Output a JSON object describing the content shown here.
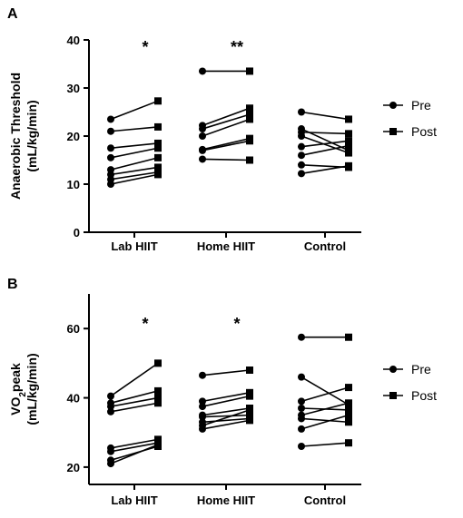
{
  "chart_data": [
    {
      "type": "scatter",
      "panel_label": "A",
      "ylabel_line1": "Anaerobic Threshold",
      "ylabel_line2": "(mL/kg/min)",
      "ylim": [
        0,
        40
      ],
      "yticks": [
        0,
        10,
        20,
        30,
        40
      ],
      "categories": [
        "Lab HIIT",
        "Home HIIT",
        "Control"
      ],
      "significance": [
        "*",
        "**",
        ""
      ],
      "legend": [
        {
          "label": "Pre",
          "marker": "circle"
        },
        {
          "label": "Post",
          "marker": "square"
        }
      ],
      "groups": [
        {
          "name": "Lab HIIT",
          "pairs": [
            [
              23.5,
              27.3
            ],
            [
              21.0,
              21.9
            ],
            [
              17.5,
              18.5
            ],
            [
              15.5,
              17.5
            ],
            [
              13.0,
              15.5
            ],
            [
              12.0,
              13.5
            ],
            [
              11.0,
              12.5
            ],
            [
              10.0,
              12.0
            ]
          ]
        },
        {
          "name": "Home HIIT",
          "pairs": [
            [
              33.5,
              33.5
            ],
            [
              22.2,
              25.8
            ],
            [
              21.5,
              24.5
            ],
            [
              20.0,
              23.5
            ],
            [
              17.2,
              19.5
            ],
            [
              17.0,
              19.0
            ],
            [
              15.2,
              15.0
            ]
          ]
        },
        {
          "name": "Control",
          "pairs": [
            [
              25.0,
              23.5
            ],
            [
              21.5,
              17.0
            ],
            [
              20.8,
              20.5
            ],
            [
              20.0,
              16.5
            ],
            [
              17.8,
              19.0
            ],
            [
              16.0,
              18.0
            ],
            [
              14.0,
              13.5
            ],
            [
              12.2,
              13.8
            ]
          ]
        }
      ]
    },
    {
      "type": "scatter",
      "panel_label": "B",
      "ylabel_line1": "VO",
      "ylabel_sub": "2",
      "ylabel_line1_rest": "peak",
      "ylabel_line2": "(mL/kg/min)",
      "ylim": [
        15,
        70
      ],
      "yticks": [
        20,
        40,
        60
      ],
      "categories": [
        "Lab HIIT",
        "Home HIIT",
        "Control"
      ],
      "significance": [
        "*",
        "*",
        ""
      ],
      "legend": [
        {
          "label": "Pre",
          "marker": "circle"
        },
        {
          "label": "Post",
          "marker": "square"
        }
      ],
      "groups": [
        {
          "name": "Lab HIIT",
          "pairs": [
            [
              40.5,
              50.0
            ],
            [
              38.5,
              42.0
            ],
            [
              37.5,
              40.0
            ],
            [
              36.0,
              38.5
            ],
            [
              25.5,
              28.0
            ],
            [
              24.5,
              27.0
            ],
            [
              22.0,
              26.0
            ],
            [
              21.0,
              26.5
            ]
          ]
        },
        {
          "name": "Home HIIT",
          "pairs": [
            [
              46.5,
              48.0
            ],
            [
              39.0,
              41.5
            ],
            [
              37.5,
              40.5
            ],
            [
              35.0,
              37.0
            ],
            [
              34.5,
              35.0
            ],
            [
              33.0,
              34.0
            ],
            [
              32.0,
              36.5
            ],
            [
              31.0,
              33.5
            ]
          ]
        },
        {
          "name": "Control",
          "pairs": [
            [
              57.5,
              57.5
            ],
            [
              46.0,
              38.0
            ],
            [
              39.0,
              43.0
            ],
            [
              37.0,
              36.5
            ],
            [
              35.0,
              38.5
            ],
            [
              34.0,
              33.0
            ],
            [
              31.0,
              35.0
            ],
            [
              26.0,
              27.0
            ]
          ]
        }
      ]
    }
  ]
}
